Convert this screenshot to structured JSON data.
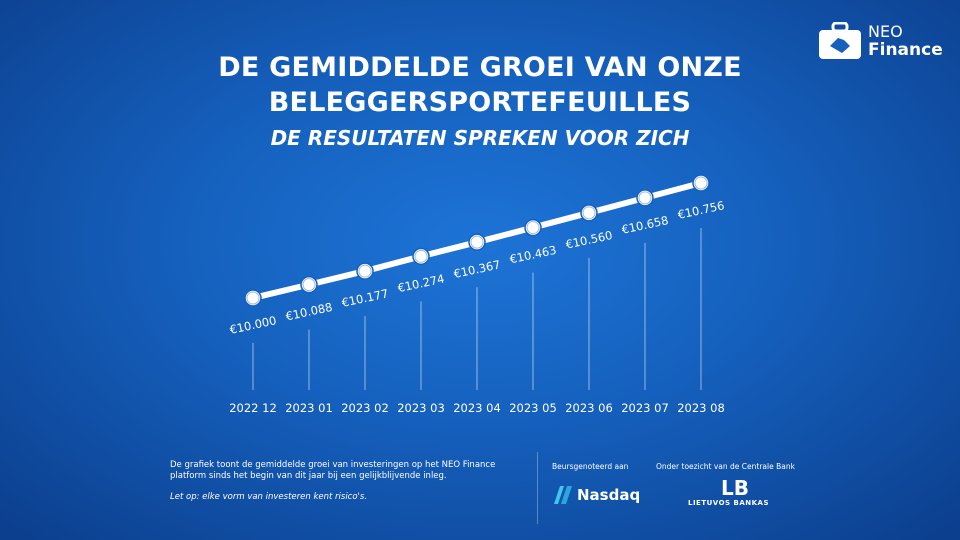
{
  "header": {
    "title_line1": "DE GEMIDDELDE GROEI VAN ONZE",
    "title_line2": "BELEGGERSPORTEFEUILLES",
    "subtitle": "DE RESULTATEN SPREKEN VOOR ZICH"
  },
  "logo": {
    "line1": "NEO",
    "line2": "Finance",
    "icon": "briefcase-handshake-icon"
  },
  "chart_data": {
    "type": "line",
    "title": "DE GEMIDDELDE GROEI VAN ONZE BELEGGERSPORTEFEUILLES",
    "categories": [
      "2022 12",
      "2023 01",
      "2023 02",
      "2023 03",
      "2023 04",
      "2023 05",
      "2023 06",
      "2023 07",
      "2023 08"
    ],
    "values": [
      10000,
      10088,
      10177,
      10274,
      10367,
      10463,
      10560,
      10658,
      10756
    ],
    "labels": [
      "€10.000",
      "€10.088",
      "€10.177",
      "€10.274",
      "€10.367",
      "€10.463",
      "€10.560",
      "€10.658",
      "€10.756"
    ],
    "xlabel": "",
    "ylabel": "",
    "ylim": [
      10000,
      10756
    ],
    "grid": false
  },
  "footer": {
    "description": "De grafiek toont de gemiddelde groei van investeringen op het NEO Finance platform sinds het begin van dit jaar bij een gelijkblijvende inleg.",
    "warning": "Let op: elke vorm van investeren kent risico's.",
    "listed_label": "Beursgenoteerd aan",
    "nasdaq": "Nasdaq",
    "supervision_label": "Onder toezicht van de Centrale Bank",
    "bank_mark": "LB",
    "bank_name": "LIETUVOS BANKAS"
  }
}
